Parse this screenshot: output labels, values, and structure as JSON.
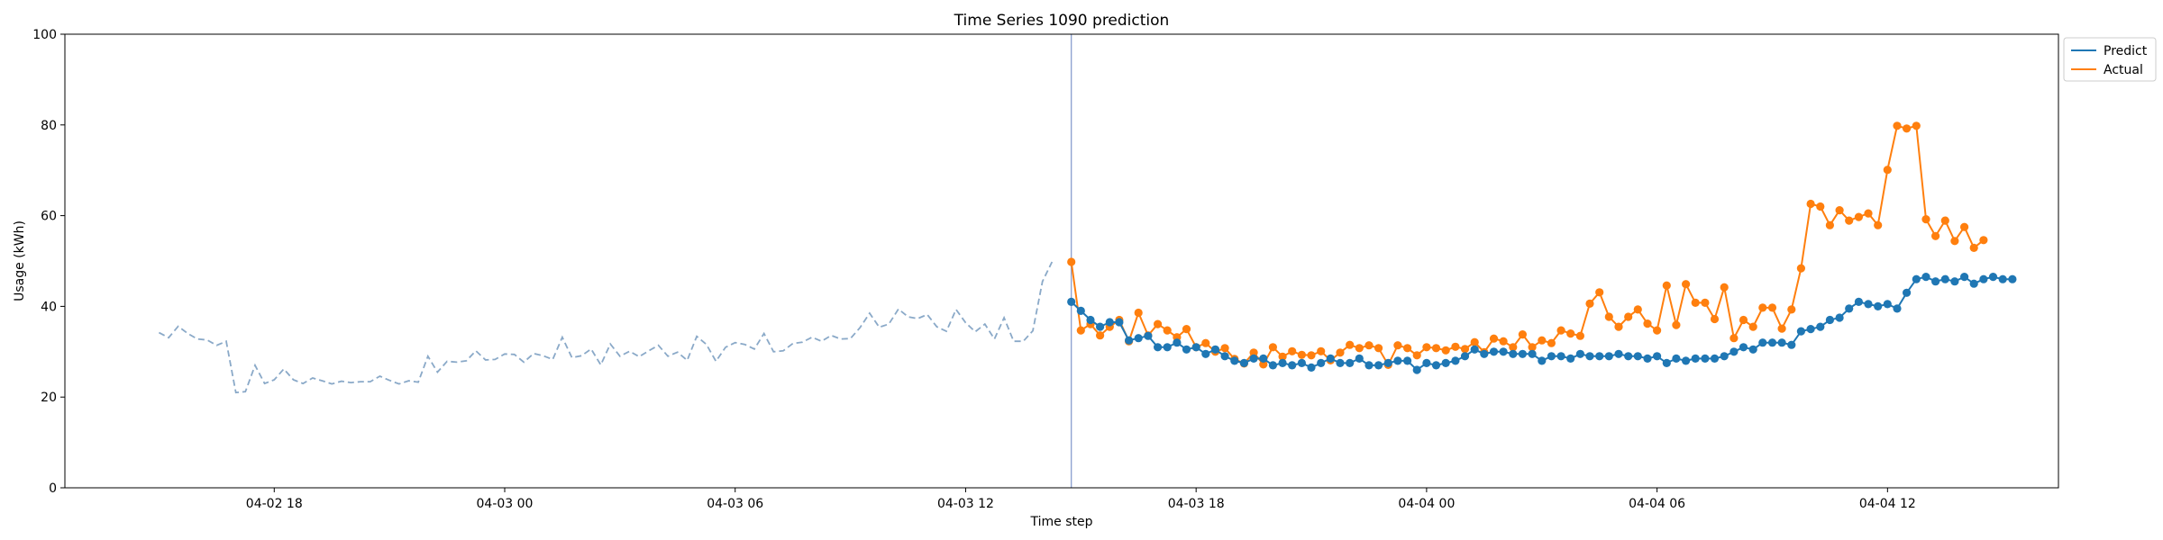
{
  "chart_data": {
    "type": "line",
    "title": "Time Series 1090 prediction",
    "xlabel": "Time step",
    "ylabel": "Usage (kWh)",
    "ylim": [
      0,
      100
    ],
    "yticks": [
      0,
      20,
      40,
      60,
      80,
      100
    ],
    "xlim": [
      "2024-04-02T12:33",
      "2024-04-04T16:27"
    ],
    "xticks": [
      {
        "t": "2024-04-02T18:00",
        "label": "04-02 18"
      },
      {
        "t": "2024-04-03T00:00",
        "label": "04-03 00"
      },
      {
        "t": "2024-04-03T06:00",
        "label": "04-03 06"
      },
      {
        "t": "2024-04-03T12:00",
        "label": "04-03 12"
      },
      {
        "t": "2024-04-03T18:00",
        "label": "04-03 18"
      },
      {
        "t": "2024-04-04T00:00",
        "label": "04-04 00"
      },
      {
        "t": "2024-04-04T06:00",
        "label": "04-04 06"
      },
      {
        "t": "2024-04-04T12:00",
        "label": "04-04 12"
      }
    ],
    "grid": false,
    "legend": "top-right outside",
    "forecast_start": "2024-04-03T14:45",
    "history": {
      "start": "2024-04-02T15:00",
      "step_minutes": 15,
      "color": "#8aa9c8",
      "values": [
        34.2,
        33.1,
        35.6,
        34.0,
        32.8,
        32.6,
        31.4,
        32.3,
        21.0,
        21.2,
        27.0,
        23.0,
        23.8,
        26.2,
        23.8,
        23.0,
        24.2,
        23.6,
        22.9,
        23.5,
        23.2,
        23.4,
        23.4,
        24.6,
        23.7,
        22.9,
        23.6,
        23.3,
        29.0,
        25.5,
        27.9,
        27.7,
        28.0,
        30.2,
        28.2,
        28.3,
        29.5,
        29.4,
        27.7,
        29.6,
        29.1,
        28.3,
        33.2,
        28.7,
        29.1,
        30.6,
        27.1,
        31.7,
        29.0,
        30.1,
        28.9,
        30.2,
        31.4,
        29.0,
        29.9,
        28.1,
        33.4,
        31.6,
        27.9,
        31.0,
        32.0,
        31.6,
        30.6,
        34.0,
        30.0,
        30.2,
        31.8,
        32.1,
        33.2,
        32.3,
        33.6,
        32.8,
        32.9,
        35.3,
        38.5,
        35.4,
        36.1,
        39.4,
        37.7,
        37.3,
        38.2,
        35.5,
        34.5,
        39.3,
        36.4,
        34.4,
        36.1,
        32.8,
        37.5,
        32.3,
        32.3,
        34.6,
        45.5,
        49.8
      ]
    },
    "series": [
      {
        "name": "Predict",
        "color": "#1f77b4",
        "start": "2024-04-03T14:45",
        "step_minutes": 15,
        "values": [
          41.0,
          39.0,
          37.0,
          35.5,
          36.5,
          36.5,
          32.5,
          33.0,
          33.5,
          31.0,
          31.0,
          32.0,
          30.5,
          31.0,
          29.5,
          30.5,
          29.0,
          28.0,
          27.5,
          28.5,
          28.5,
          27.0,
          27.5,
          27.0,
          27.5,
          26.5,
          27.5,
          28.5,
          27.5,
          27.5,
          28.5,
          27.0,
          27.0,
          27.5,
          28.0,
          28.0,
          26.0,
          27.5,
          27.0,
          27.5,
          28.0,
          29.0,
          30.5,
          29.5,
          30.0,
          30.0,
          29.5,
          29.5,
          29.5,
          28.0,
          29.0,
          29.0,
          28.5,
          29.5,
          29.0,
          29.0,
          29.0,
          29.5,
          29.0,
          29.0,
          28.5,
          29.0,
          27.5,
          28.5,
          28.0,
          28.5,
          28.5,
          28.5,
          29.0,
          30.0,
          31.0,
          30.5,
          32.0,
          32.0,
          32.0,
          31.5,
          34.5,
          35.0,
          35.5,
          37.0,
          37.5,
          39.5,
          41.0,
          40.5,
          40.0,
          40.5,
          39.5,
          43.0,
          46.0,
          46.5,
          45.5,
          46.0,
          45.5,
          46.5,
          45.0,
          46.0,
          46.5,
          46.0,
          46.0
        ]
      },
      {
        "name": "Actual",
        "color": "#ff7f0e",
        "start": "2024-04-03T14:45",
        "step_minutes": 15,
        "values": [
          49.8,
          34.7,
          36.1,
          33.6,
          35.5,
          37.0,
          32.3,
          38.6,
          33.6,
          36.1,
          34.7,
          33.2,
          35.0,
          31.0,
          31.9,
          30.0,
          30.8,
          28.4,
          27.4,
          29.8,
          27.2,
          31.0,
          28.9,
          30.1,
          29.3,
          29.2,
          30.1,
          28.1,
          29.8,
          31.5,
          30.8,
          31.4,
          30.8,
          27.1,
          31.4,
          30.8,
          29.2,
          31.0,
          30.8,
          30.3,
          31.1,
          30.6,
          32.1,
          29.9,
          32.9,
          32.3,
          31.0,
          33.8,
          31.0,
          32.5,
          31.9,
          34.7,
          34.0,
          33.5,
          40.6,
          43.1,
          37.7,
          35.5,
          37.7,
          39.3,
          36.2,
          34.7,
          44.6,
          35.9,
          44.9,
          40.8,
          40.8,
          37.2,
          44.2,
          33.0,
          37.0,
          35.5,
          39.7,
          39.7,
          35.1,
          39.3,
          48.4,
          62.6,
          62.0,
          57.9,
          61.2,
          58.9,
          59.7,
          60.5,
          57.9,
          70.1,
          79.8,
          79.2,
          79.8,
          59.2,
          55.5,
          58.9,
          54.4,
          57.5,
          52.9,
          54.6
        ]
      }
    ]
  }
}
